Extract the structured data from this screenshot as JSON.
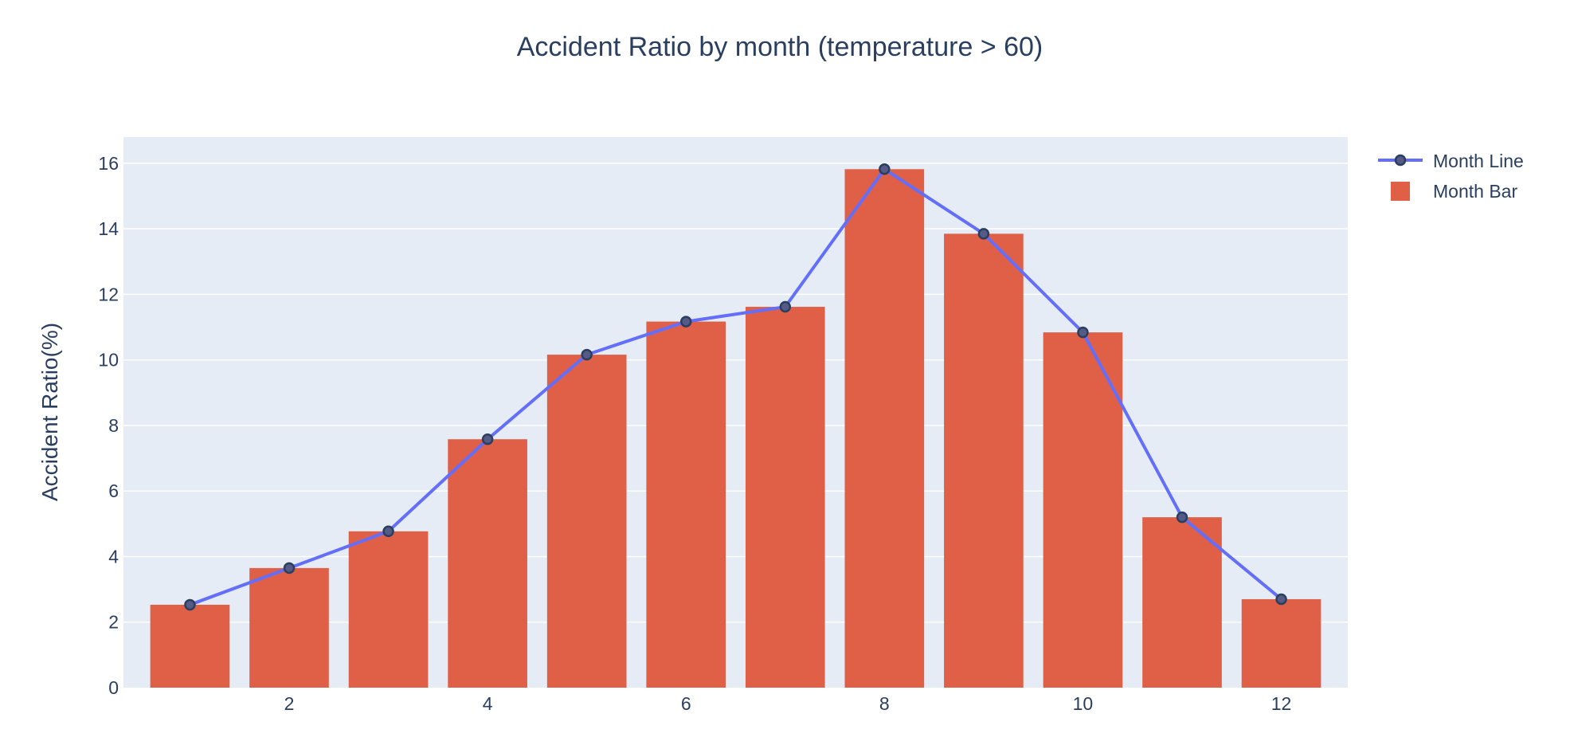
{
  "chart_data": {
    "type": "bar",
    "title": "Accident Ratio by month (temperature > 60)",
    "xlabel": "",
    "ylabel": "Accident Ratio(%)",
    "x": [
      1,
      2,
      3,
      4,
      5,
      6,
      7,
      8,
      9,
      10,
      11,
      12
    ],
    "xlim": [
      0.33,
      12.67
    ],
    "ylim": [
      0,
      16.8
    ],
    "x_ticks": [
      2,
      4,
      6,
      8,
      10,
      12
    ],
    "y_ticks": [
      0,
      2,
      4,
      6,
      8,
      10,
      12,
      14,
      16
    ],
    "grid": true,
    "legend_position": "top-right",
    "series": [
      {
        "name": "Month Line",
        "kind": "line+markers",
        "color": "#636efa",
        "values": [
          2.53,
          3.65,
          4.77,
          7.58,
          10.16,
          11.17,
          11.62,
          15.82,
          13.85,
          10.84,
          5.2,
          2.7
        ]
      },
      {
        "name": "Month Bar",
        "kind": "bar",
        "color": "#e05f47",
        "values": [
          2.53,
          3.65,
          4.77,
          7.58,
          10.16,
          11.17,
          11.62,
          15.82,
          13.85,
          10.84,
          5.2,
          2.7
        ]
      }
    ],
    "colors": {
      "plot_background": "#e5ecf6",
      "gridline": "#ffffff",
      "text": "#2a3f5f",
      "marker_fill": "#555a87",
      "marker_edge": "#2a3f5f"
    }
  }
}
